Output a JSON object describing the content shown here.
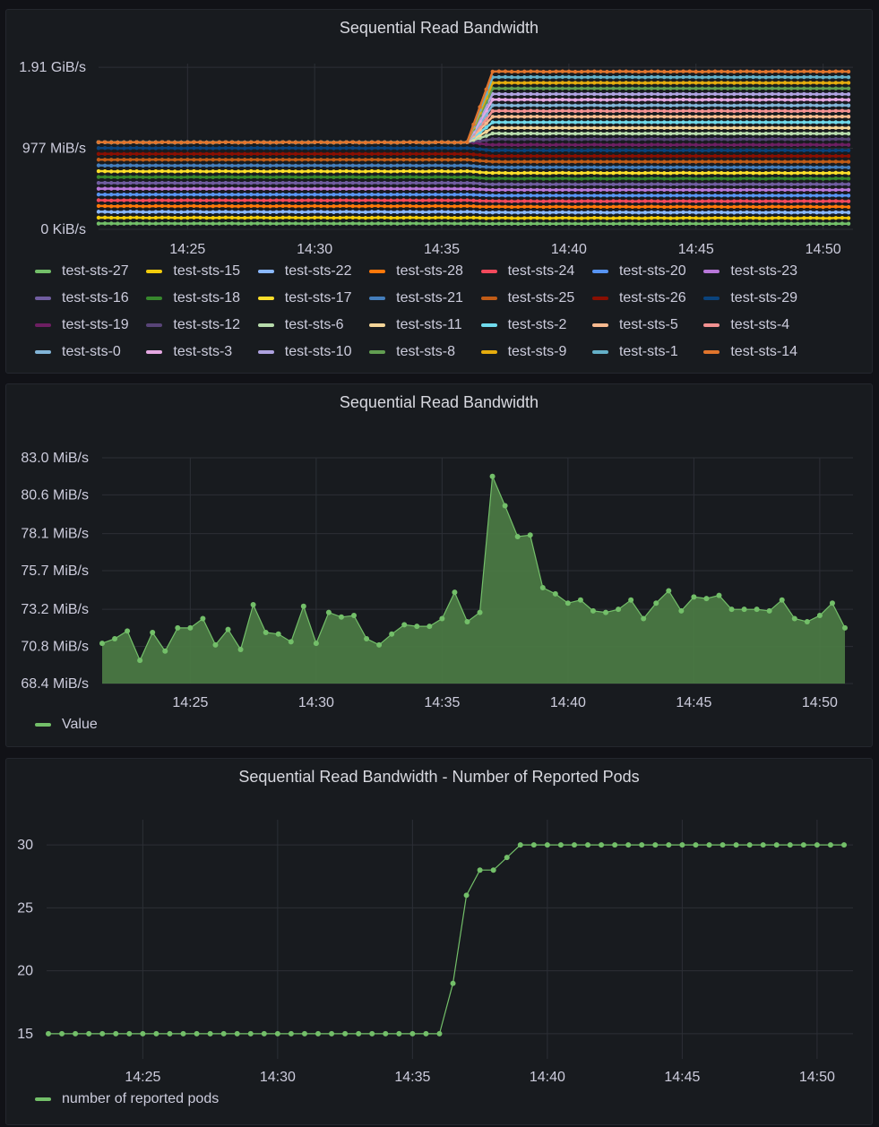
{
  "colors": {
    "background": "#111217",
    "panel": "#181b1f",
    "grid": "#2c2f36",
    "text": "#ccccdc",
    "green": "#73bf69"
  },
  "panels": [
    {
      "title": "Sequential Read Bandwidth"
    },
    {
      "title": "Sequential Read Bandwidth"
    },
    {
      "title": "Sequential Read Bandwidth - Number of Reported Pods"
    }
  ],
  "chart_data": [
    {
      "type": "area",
      "title": "Sequential Read Bandwidth",
      "stacked": true,
      "x_ticks": [
        "14:25",
        "14:30",
        "14:35",
        "14:40",
        "14:45",
        "14:50"
      ],
      "y_ticks": [
        "0 KiB/s",
        "977 MiB/s",
        "1.91 GiB/s"
      ],
      "y_unit": "MiB/s",
      "ylim": [
        0,
        2000
      ],
      "x_range": [
        "14:21:30",
        "14:51"
      ],
      "per_series_bandwidth_MiB_s": {
        "before": 70,
        "after": 68
      },
      "step_time": "14:36 - 14:37",
      "series": [
        {
          "name": "test-sts-27",
          "color": "#73bf69"
        },
        {
          "name": "test-sts-15",
          "color": "#f2cc0c"
        },
        {
          "name": "test-sts-22",
          "color": "#8ab8ff"
        },
        {
          "name": "test-sts-28",
          "color": "#ff780a"
        },
        {
          "name": "test-sts-24",
          "color": "#f2495c"
        },
        {
          "name": "test-sts-20",
          "color": "#5794f2"
        },
        {
          "name": "test-sts-23",
          "color": "#b877d9"
        },
        {
          "name": "test-sts-16",
          "color": "#705da0"
        },
        {
          "name": "test-sts-18",
          "color": "#37872d"
        },
        {
          "name": "test-sts-17",
          "color": "#fade2a"
        },
        {
          "name": "test-sts-21",
          "color": "#447ebc"
        },
        {
          "name": "test-sts-25",
          "color": "#c15c17"
        },
        {
          "name": "test-sts-26",
          "color": "#890f02"
        },
        {
          "name": "test-sts-29",
          "color": "#0a437c"
        },
        {
          "name": "test-sts-19",
          "color": "#6d1f62"
        },
        {
          "name": "test-sts-12",
          "color": "#584477"
        },
        {
          "name": "test-sts-6",
          "color": "#b7dbab"
        },
        {
          "name": "test-sts-11",
          "color": "#f4d598"
        },
        {
          "name": "test-sts-2",
          "color": "#70dbed"
        },
        {
          "name": "test-sts-5",
          "color": "#f9ba8f"
        },
        {
          "name": "test-sts-4",
          "color": "#f29191"
        },
        {
          "name": "test-sts-0",
          "color": "#82b5d8"
        },
        {
          "name": "test-sts-3",
          "color": "#e5a8e2"
        },
        {
          "name": "test-sts-10",
          "color": "#aea2e0"
        },
        {
          "name": "test-sts-8",
          "color": "#629e51"
        },
        {
          "name": "test-sts-9",
          "color": "#e5ac0e"
        },
        {
          "name": "test-sts-1",
          "color": "#64b0c8"
        },
        {
          "name": "test-sts-14",
          "color": "#e0752d"
        }
      ]
    },
    {
      "type": "area",
      "title": "Sequential Read Bandwidth",
      "x_ticks": [
        "14:25",
        "14:30",
        "14:35",
        "14:40",
        "14:45",
        "14:50"
      ],
      "y_ticks": [
        "68.4 MiB/s",
        "70.8 MiB/s",
        "73.2 MiB/s",
        "75.7 MiB/s",
        "78.1 MiB/s",
        "80.6 MiB/s",
        "83.0 MiB/s"
      ],
      "ylim": [
        68.4,
        83.0
      ],
      "y_unit": "MiB/s",
      "x_start": "14:21:30",
      "x_step_seconds": 30,
      "series": [
        {
          "name": "Value",
          "color": "#73bf69",
          "values": [
            71.0,
            71.3,
            71.8,
            69.9,
            71.7,
            70.5,
            72.0,
            72.0,
            72.6,
            70.9,
            71.9,
            70.6,
            73.5,
            71.7,
            71.6,
            71.1,
            73.4,
            71.0,
            73.0,
            72.7,
            72.8,
            71.3,
            70.9,
            71.6,
            72.2,
            72.1,
            72.1,
            72.6,
            74.3,
            72.4,
            73.0,
            81.8,
            79.9,
            77.9,
            78.0,
            74.6,
            74.2,
            73.6,
            73.8,
            73.1,
            73.0,
            73.2,
            73.8,
            72.6,
            73.6,
            74.4,
            73.1,
            74.0,
            73.9,
            74.1,
            73.2,
            73.2,
            73.2,
            73.1,
            73.8,
            72.6,
            72.4,
            72.8,
            73.6,
            72.0
          ]
        }
      ]
    },
    {
      "type": "line",
      "title": "Sequential Read Bandwidth - Number of Reported Pods",
      "x_ticks": [
        "14:25",
        "14:30",
        "14:35",
        "14:40",
        "14:45",
        "14:50"
      ],
      "y_ticks": [
        "15",
        "20",
        "25",
        "30"
      ],
      "ylim": [
        13,
        32
      ],
      "x_start": "14:21:30",
      "x_step_seconds": 30,
      "series": [
        {
          "name": "number of reported pods",
          "color": "#73bf69",
          "values": [
            15,
            15,
            15,
            15,
            15,
            15,
            15,
            15,
            15,
            15,
            15,
            15,
            15,
            15,
            15,
            15,
            15,
            15,
            15,
            15,
            15,
            15,
            15,
            15,
            15,
            15,
            15,
            15,
            15,
            15,
            19,
            26,
            28,
            28,
            29,
            30,
            30,
            30,
            30,
            30,
            30,
            30,
            30,
            30,
            30,
            30,
            30,
            30,
            30,
            30,
            30,
            30,
            30,
            30,
            30,
            30,
            30,
            30,
            30,
            30
          ]
        }
      ]
    }
  ]
}
